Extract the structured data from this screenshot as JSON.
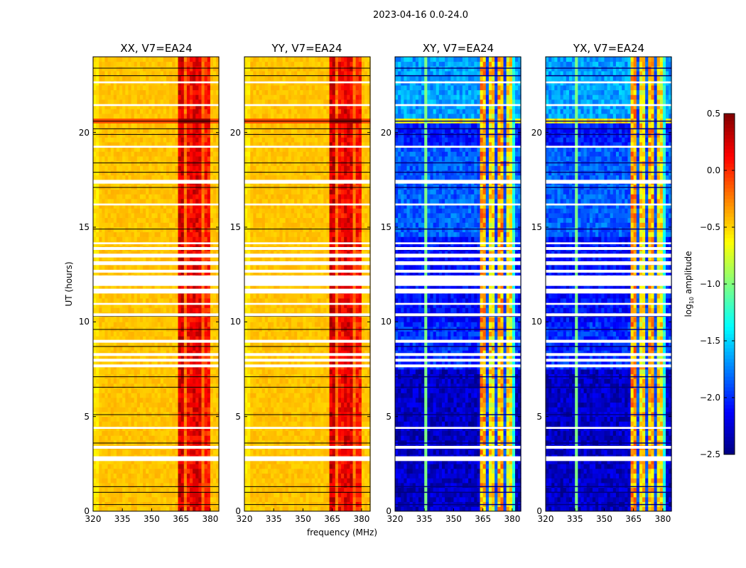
{
  "suptitle": "2023-04-16 0.0-24.0",
  "xlabel": "frequency (MHz)",
  "ylabel": "UT (hours)",
  "chart_data": {
    "type": "heatmap",
    "title": "2023-04-16 0.0-24.0",
    "xlabel": "frequency (MHz)",
    "ylabel": "UT (hours)",
    "xlim": [
      320,
      384.4
    ],
    "ylim": [
      0,
      24
    ],
    "xticks": [
      320,
      335,
      350,
      365,
      380
    ],
    "yticks": [
      0,
      5,
      10,
      15,
      20
    ],
    "colormap": "jet",
    "colorbar": {
      "label_prefix": "log",
      "label_sub": "10",
      "label_suffix": " amplitude",
      "range": [
        -2.5,
        0.5
      ],
      "ticks": [
        "0.5",
        "0.0",
        "−0.5",
        "−1.0",
        "−1.5",
        "−2.0",
        "−2.5"
      ],
      "tick_values": [
        0.5,
        0.0,
        -0.5,
        -1.0,
        -1.5,
        -2.0,
        -2.5
      ]
    },
    "panels": [
      {
        "title": "XX, V7=EA24",
        "kind": "parallel"
      },
      {
        "title": "YY, V7=EA24",
        "kind": "parallel"
      },
      {
        "title": "XY, V7=EA24",
        "kind": "cross"
      },
      {
        "title": "YX, V7=EA24",
        "kind": "cross"
      }
    ],
    "parallel_model": {
      "base": -0.45,
      "band_columns_mhz": [
        [
          363.5,
          366.5,
          0.25
        ],
        [
          367.5,
          370.5,
          0.1
        ],
        [
          371.5,
          375.5,
          0.2
        ],
        [
          376.5,
          379.5,
          0.05
        ]
      ],
      "band_gap_value": -0.2,
      "strong_rows_hours": [
        [
          20.4,
          20.8,
          0.45
        ]
      ]
    },
    "cross_model": {
      "base_by_time": [
        [
          0,
          7.5,
          -2.3
        ],
        [
          7.5,
          10.0,
          -2.0
        ],
        [
          10.0,
          14.5,
          -2.1
        ],
        [
          14.5,
          19.2,
          -1.85
        ],
        [
          19.2,
          20.4,
          -2.05
        ],
        [
          20.4,
          20.8,
          -0.6
        ],
        [
          20.8,
          24,
          -1.65
        ]
      ],
      "band_columns_mhz": [
        [
          363.5,
          366.5,
          -0.35
        ],
        [
          367.5,
          371.0,
          -0.55
        ],
        [
          372.0,
          375.5,
          -0.4
        ],
        [
          376.5,
          379.5,
          -0.6
        ]
      ],
      "band_gap_value": -1.9,
      "edge_band_mhz": [
        379.5,
        381.5,
        -1.3
      ],
      "spur_line_mhz": 336,
      "spur_value": -1.0
    },
    "flagged_rows_hours": [
      [
        2.65,
        2.9
      ],
      [
        3.3,
        3.45
      ],
      [
        4.35,
        4.45
      ],
      [
        7.6,
        7.75
      ],
      [
        7.9,
        8.05
      ],
      [
        8.2,
        8.35
      ],
      [
        8.9,
        9.05
      ],
      [
        10.3,
        10.45
      ],
      [
        10.9,
        11.0
      ],
      [
        11.5,
        11.75
      ],
      [
        11.9,
        12.45
      ],
      [
        12.6,
        12.75
      ],
      [
        13.0,
        13.2
      ],
      [
        13.4,
        13.6
      ],
      [
        13.8,
        13.95
      ],
      [
        14.1,
        14.2
      ],
      [
        16.15,
        16.25
      ],
      [
        17.3,
        17.5
      ],
      [
        19.2,
        19.3
      ],
      [
        21.4,
        21.5
      ],
      [
        22.6,
        22.7
      ]
    ],
    "dark_rows_hours": [
      0.35,
      1.0,
      1.3,
      3.6,
      5.1,
      6.55,
      7.1,
      8.7,
      9.6,
      10.3,
      14.9,
      17.1,
      17.9,
      18.4,
      19.9,
      20.2,
      20.6,
      23.0,
      23.4
    ]
  }
}
